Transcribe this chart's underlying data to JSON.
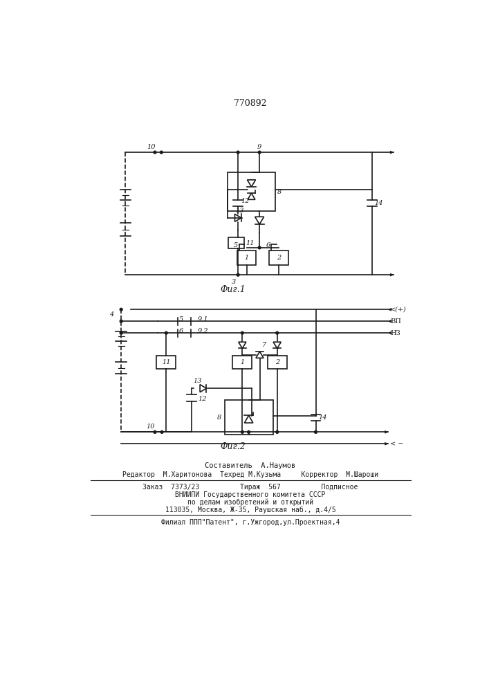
{
  "title_number": "770892",
  "fig1_label": "Фиг.1",
  "fig2_label": "Фиг.2",
  "bg_color": "#ffffff",
  "line_color": "#1a1a1a",
  "lw": 1.2
}
